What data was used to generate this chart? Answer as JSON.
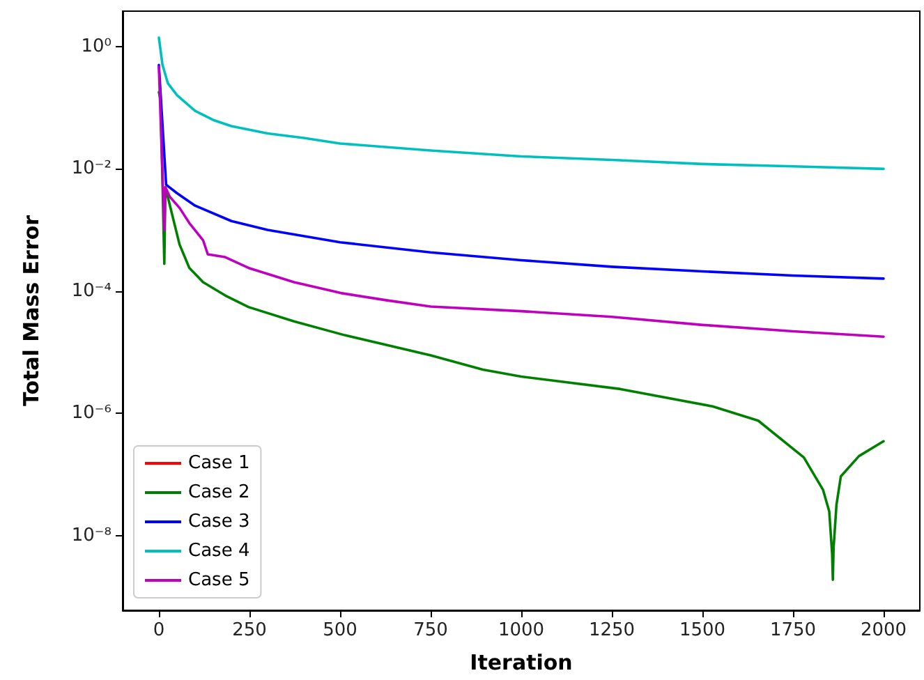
{
  "chart_data": {
    "type": "line",
    "xlabel": "Iteration",
    "ylabel": "Total Mass Error",
    "log": "y",
    "legend": "bottom left",
    "xlim": [
      -100,
      2100
    ],
    "xticks": [
      0,
      250,
      500,
      750,
      1000,
      1250,
      1500,
      1750,
      2000
    ],
    "ylim": [
      6e-10,
      3.8
    ],
    "yticks": [
      {
        "value": 1,
        "label": "10⁰"
      },
      {
        "value": 0.01,
        "label": "10⁻²"
      },
      {
        "value": 0.0001,
        "label": "10⁻⁴"
      },
      {
        "value": 1e-06,
        "label": "10⁻⁶"
      },
      {
        "value": 1e-08,
        "label": "10⁻⁸"
      }
    ],
    "series": [
      {
        "name": "Case 1",
        "color": "#ff0000"
      },
      {
        "name": "Case 2",
        "color": "#008000",
        "x": [
          0,
          5,
          15,
          18,
          57,
          84,
          122,
          183,
          247,
          373,
          513,
          750,
          894,
          1000,
          1274,
          1528,
          1654,
          1780,
          1833,
          1850,
          1858,
          1860,
          1862,
          1870,
          1882,
          1932,
          2000
        ],
        "values": [
          0.18,
          0.13,
          0.00028,
          0.005,
          0.00058,
          0.00024,
          0.00014,
          8.5e-05,
          5.5e-05,
          3.2e-05,
          1.9e-05,
          8.9e-06,
          5.2e-06,
          4e-06,
          2.5e-06,
          1.3e-06,
          7.6e-07,
          1.9e-07,
          5.6e-08,
          2.5e-08,
          5e-09,
          1.9e-09,
          6.3e-09,
          3.2e-08,
          9.3e-08,
          2e-07,
          3.5e-07
        ]
      },
      {
        "name": "Case 3",
        "color": "#0000ff",
        "x": [
          0,
          20,
          50,
          100,
          200,
          300,
          500,
          750,
          1000,
          1250,
          1500,
          1750,
          2000
        ],
        "values": [
          0.5,
          0.0055,
          0.004,
          0.0025,
          0.0014,
          0.001,
          0.00063,
          0.00043,
          0.00032,
          0.00025,
          0.00021,
          0.00018,
          0.00016
        ]
      },
      {
        "name": "Case 4",
        "color": "#00bfbf",
        "x": [
          0,
          10,
          25,
          50,
          100,
          150,
          200,
          300,
          400,
          500,
          750,
          1000,
          1250,
          1500,
          1750,
          2000
        ],
        "values": [
          1.4,
          0.5,
          0.25,
          0.16,
          0.089,
          0.063,
          0.05,
          0.038,
          0.032,
          0.026,
          0.02,
          0.016,
          0.014,
          0.012,
          0.011,
          0.01
        ]
      },
      {
        "name": "Case 5",
        "color": "#bf00bf",
        "x": [
          0,
          15,
          18,
          30,
          57,
          84,
          122,
          135,
          183,
          247,
          373,
          502,
          627,
          750,
          1000,
          1250,
          1500,
          1750,
          2000
        ],
        "values": [
          0.47,
          0.001,
          0.005,
          0.0035,
          0.0023,
          0.0013,
          0.00068,
          0.0004,
          0.00036,
          0.00024,
          0.00014,
          9.3e-05,
          7.1e-05,
          5.6e-05,
          4.7e-05,
          3.8e-05,
          2.8e-05,
          2.2e-05,
          1.8e-05
        ]
      }
    ]
  }
}
